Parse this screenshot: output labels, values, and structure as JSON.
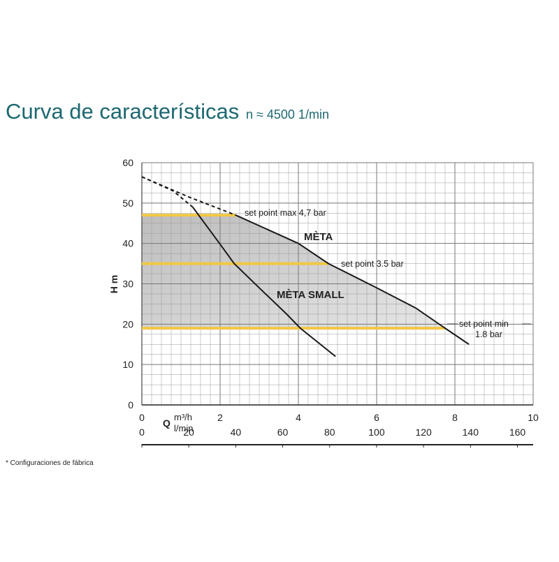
{
  "chart_data": {
    "type": "line",
    "title": "Curva de características",
    "subtitle": "n ≈ 4500 1/min",
    "ylabel": "H m",
    "xlabel": "Q",
    "xunit": "m³/h",
    "x2unit": "l/min",
    "footnote": "* Configuraciones de fábrica",
    "xlim": [
      0,
      10
    ],
    "xticks": [
      0,
      2,
      4,
      6,
      8,
      10
    ],
    "x2lim": [
      0,
      166.7
    ],
    "x2ticks": [
      0,
      20,
      40,
      60,
      80,
      100,
      120,
      140,
      160
    ],
    "ylim": [
      0,
      60
    ],
    "yticks": [
      0,
      10,
      20,
      30,
      40,
      50,
      60
    ],
    "grid": true,
    "minor_xstep": 0.25,
    "minor_ystep": 2.5,
    "series": [
      {
        "name": "MÈTA",
        "color": "#1a1a1a",
        "x": [
          2.4,
          4.0,
          4.77,
          6.0,
          7.0,
          7.75,
          8.36
        ],
        "values": [
          47,
          40,
          35,
          29,
          24,
          19,
          15
        ]
      },
      {
        "name": "MÈTA SMALL",
        "color": "#1a1a1a",
        "x": [
          1.3,
          2.0,
          2.36,
          3.0,
          3.7,
          4.05,
          4.95
        ],
        "values": [
          49,
          39.8,
          35,
          29,
          22.5,
          19,
          12
        ]
      },
      {
        "color": "#1a1a1a",
        "style": "dashed",
        "x": [
          0,
          1.2,
          2.4
        ],
        "values": [
          56.5,
          51.5,
          47
        ]
      },
      {
        "color": "#1a1a1a",
        "style": "dashed",
        "x": [
          0,
          0.8,
          1.3
        ],
        "values": [
          56.5,
          53,
          49
        ]
      }
    ],
    "reference_lines": [
      {
        "y": 47,
        "x_end": 2.4,
        "color": "#f2c744",
        "label": "set point max 4,7 bar"
      },
      {
        "y": 35,
        "x_end": 4.77,
        "color": "#f2c744",
        "label": "set point 3.5 bar"
      },
      {
        "y": 19,
        "x_end": 7.75,
        "color": "#f2c744",
        "label": "set point min",
        "label2": "1.8 bar"
      }
    ]
  }
}
